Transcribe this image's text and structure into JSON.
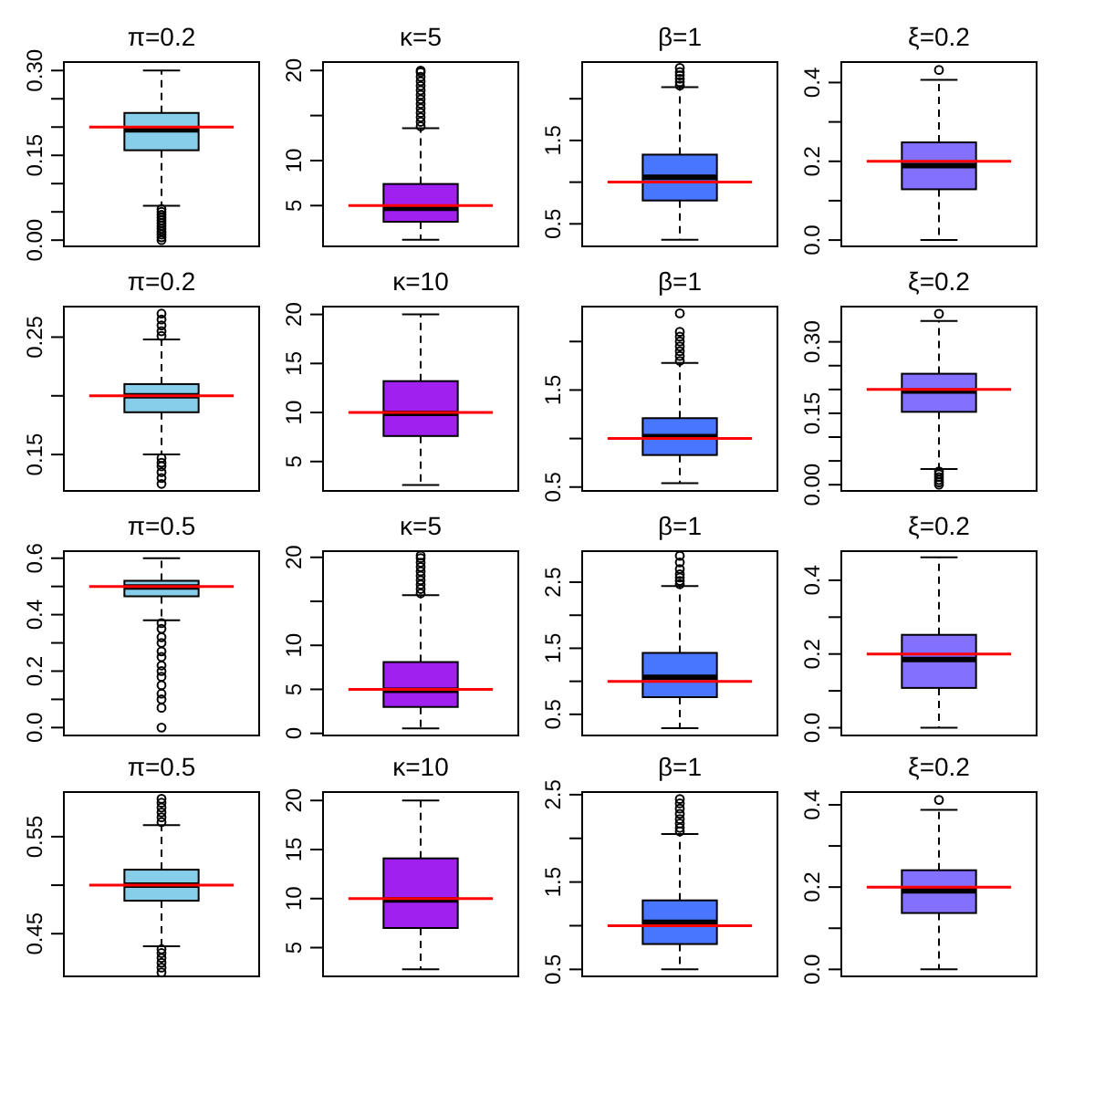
{
  "chart_data": [
    {
      "type": "box",
      "title": "π=0.2",
      "categories": [
        null
      ],
      "tick_labels": "y",
      "ylim": [
        -0.011,
        0.315
      ],
      "yticks": [
        {
          "value": 0,
          "label": "0.00"
        },
        {
          "value": 0.05,
          "label": null
        },
        {
          "value": 0.1,
          "label": null
        },
        0.15,
        {
          "value": 0.2,
          "label": null
        },
        {
          "value": 0.25,
          "label": null
        },
        {
          "value": 0.3,
          "label": "0.30"
        }
      ],
      "series": [
        {
          "color": "#87ceeb",
          "boxes": [
            {
              "low": 0.061,
              "q1": 0.159,
              "median": 0.195,
              "q3": 0.225,
              "high": 0.3,
              "outliers": [
                0.055,
                0.05,
                0.045,
                0.04,
                0.035,
                0.03,
                0.025,
                0.02,
                0.015,
                0.01,
                0.005,
                0.0
              ]
            }
          ]
        }
      ],
      "ref_lines": [
        {
          "axis": "y",
          "value": 0.2,
          "color": "#ff0000"
        }
      ]
    },
    {
      "type": "box",
      "title": "κ=5",
      "categories": [
        null
      ],
      "tick_labels": "y",
      "ylim": [
        0.47,
        20.94
      ],
      "yticks": [
        5,
        10,
        {
          "value": 15,
          "label": null
        },
        20
      ],
      "series": [
        {
          "color": "#a020f0",
          "boxes": [
            {
              "low": 1.2,
              "q1": 3.2,
              "median": 4.7,
              "q3": 7.4,
              "high": 13.6,
              "outliers": [
                13.8,
                14.3,
                14.8,
                15.3,
                15.8,
                16.3,
                16.8,
                17.3,
                17.8,
                18.3,
                18.8,
                19.3,
                19.8,
                20
              ]
            }
          ]
        }
      ],
      "ref_lines": [
        {
          "axis": "y",
          "value": 5,
          "color": "#ff0000"
        }
      ]
    },
    {
      "type": "box",
      "title": "β=1",
      "categories": [
        null
      ],
      "tick_labels": "y",
      "ylim": [
        0.23,
        2.44
      ],
      "yticks": [
        0.5,
        {
          "value": 1,
          "label": null
        },
        1.5,
        {
          "value": 2,
          "label": null
        }
      ],
      "series": [
        {
          "color": "#4876ff",
          "boxes": [
            {
              "low": 0.31,
              "q1": 0.78,
              "median": 1.06,
              "q3": 1.33,
              "high": 2.14,
              "outliers": [
                2.16,
                2.2,
                2.24,
                2.28,
                2.32,
                2.37
              ]
            }
          ]
        }
      ],
      "ref_lines": [
        {
          "axis": "y",
          "value": 1,
          "color": "#ff0000"
        }
      ]
    },
    {
      "type": "box",
      "title": "ξ=0.2",
      "categories": [
        null
      ],
      "tick_labels": "y",
      "ylim": [
        -0.016,
        0.452
      ],
      "yticks": [
        {
          "value": 0,
          "label": "0.0"
        },
        {
          "value": 0.1,
          "label": null
        },
        0.2,
        {
          "value": 0.3,
          "label": null
        },
        0.4
      ],
      "series": [
        {
          "color": "#8470ff",
          "boxes": [
            {
              "low": 0,
              "q1": 0.129,
              "median": 0.189,
              "q3": 0.248,
              "high": 0.407,
              "outliers": [
                0.432
              ]
            }
          ]
        }
      ],
      "ref_lines": [
        {
          "axis": "y",
          "value": 0.2,
          "color": "#ff0000"
        }
      ]
    },
    {
      "type": "box",
      "title": "π=0.2",
      "categories": [
        null
      ],
      "tick_labels": "y",
      "ylim": [
        0.119,
        0.276
      ],
      "yticks": [
        0.15,
        {
          "value": 0.2,
          "label": null
        },
        0.25
      ],
      "series": [
        {
          "color": "#87ceeb",
          "boxes": [
            {
              "low": 0.15,
              "q1": 0.186,
              "median": 0.2,
              "q3": 0.21,
              "high": 0.248,
              "outliers": [
                0.251,
                0.255,
                0.26,
                0.265,
                0.27,
                0.147,
                0.143,
                0.14,
                0.135,
                0.13,
                0.125
              ]
            }
          ]
        }
      ],
      "ref_lines": [
        {
          "axis": "y",
          "value": 0.2,
          "color": "#ff0000"
        }
      ]
    },
    {
      "type": "box",
      "title": "κ=10",
      "categories": [
        null
      ],
      "tick_labels": "y",
      "ylim": [
        2.0,
        20.8
      ],
      "yticks": [
        5,
        10,
        15,
        20
      ],
      "series": [
        {
          "color": "#a020f0",
          "boxes": [
            {
              "low": 2.6,
              "q1": 7.6,
              "median": 9.9,
              "q3": 13.2,
              "high": 20
            }
          ]
        }
      ],
      "ref_lines": [
        {
          "axis": "y",
          "value": 10,
          "color": "#ff0000"
        }
      ]
    },
    {
      "type": "box",
      "title": "β=1",
      "categories": [
        null
      ],
      "tick_labels": "y",
      "ylim": [
        0.46,
        2.36
      ],
      "yticks": [
        0.5,
        {
          "value": 1,
          "label": null
        },
        1.5,
        {
          "value": 2,
          "label": null
        }
      ],
      "series": [
        {
          "color": "#4876ff",
          "boxes": [
            {
              "low": 0.54,
              "q1": 0.83,
              "median": 1.02,
              "q3": 1.21,
              "high": 1.78,
              "outliers": [
                1.8,
                1.85,
                1.9,
                1.95,
                2.0,
                2.05,
                2.1,
                2.29
              ]
            }
          ]
        }
      ],
      "ref_lines": [
        {
          "axis": "y",
          "value": 1,
          "color": "#ff0000"
        }
      ]
    },
    {
      "type": "box",
      "title": "ξ=0.2",
      "categories": [
        null
      ],
      "tick_labels": "y",
      "ylim": [
        -0.013,
        0.374
      ],
      "yticks": [
        {
          "value": 0,
          "label": "0.00"
        },
        {
          "value": 0.05,
          "label": null
        },
        {
          "value": 0.1,
          "label": null
        },
        0.15,
        {
          "value": 0.2,
          "label": null
        },
        {
          "value": 0.25,
          "label": null
        },
        {
          "value": 0.3,
          "label": "0.30"
        }
      ],
      "series": [
        {
          "color": "#8470ff",
          "boxes": [
            {
              "low": 0.033,
              "q1": 0.153,
              "median": 0.197,
              "q3": 0.233,
              "high": 0.344,
              "outliers": [
                0.359,
                0.028,
                0.022,
                0.016,
                0.01,
                0.005,
                0.0
              ]
            }
          ]
        }
      ],
      "ref_lines": [
        {
          "axis": "y",
          "value": 0.2,
          "color": "#ff0000"
        }
      ]
    },
    {
      "type": "box",
      "title": "π=0.5",
      "categories": [
        null
      ],
      "tick_labels": "y",
      "ylim": [
        -0.028,
        0.625
      ],
      "yticks": [
        {
          "value": 0,
          "label": "0.0"
        },
        {
          "value": 0.1,
          "label": null
        },
        0.2,
        {
          "value": 0.3,
          "label": null
        },
        0.4,
        {
          "value": 0.5,
          "label": null
        },
        0.6
      ],
      "series": [
        {
          "color": "#87ceeb",
          "boxes": [
            {
              "low": 0.38,
              "q1": 0.465,
              "median": 0.498,
              "q3": 0.52,
              "high": 0.6,
              "outliers": [
                0.37,
                0.35,
                0.32,
                0.3,
                0.27,
                0.25,
                0.22,
                0.2,
                0.18,
                0.15,
                0.12,
                0.1,
                0.07,
                0.0
              ]
            }
          ]
        }
      ],
      "ref_lines": [
        {
          "axis": "y",
          "value": 0.5,
          "color": "#ff0000"
        }
      ]
    },
    {
      "type": "box",
      "title": "κ=5",
      "categories": [
        null
      ],
      "tick_labels": "y",
      "ylim": [
        -0.24,
        20.7
      ],
      "yticks": [
        0,
        5,
        10,
        {
          "value": 15,
          "label": null
        },
        20
      ],
      "series": [
        {
          "color": "#a020f0",
          "boxes": [
            {
              "low": 0.56,
              "q1": 3.0,
              "median": 4.9,
              "q3": 8.1,
              "high": 15.7,
              "outliers": [
                15.9,
                16.4,
                16.9,
                17.4,
                17.9,
                18.4,
                18.9,
                19.4,
                19.9,
                20.2
              ]
            }
          ]
        }
      ],
      "ref_lines": [
        {
          "axis": "y",
          "value": 5,
          "color": "#ff0000"
        }
      ]
    },
    {
      "type": "box",
      "title": "β=1",
      "categories": [
        null
      ],
      "tick_labels": "y",
      "ylim": [
        0.18,
        2.97
      ],
      "yticks": [
        0.5,
        {
          "value": 1,
          "label": null
        },
        1.5,
        {
          "value": 2,
          "label": null
        },
        2.5
      ],
      "series": [
        {
          "color": "#4876ff",
          "boxes": [
            {
              "low": 0.29,
              "q1": 0.76,
              "median": 1.06,
              "q3": 1.43,
              "high": 2.44,
              "outliers": [
                2.47,
                2.52,
                2.57,
                2.62,
                2.7,
                2.8,
                2.9
              ]
            }
          ]
        }
      ],
      "ref_lines": [
        {
          "axis": "y",
          "value": 1,
          "color": "#ff0000"
        }
      ]
    },
    {
      "type": "box",
      "title": "ξ=0.2",
      "categories": [
        null
      ],
      "tick_labels": "y",
      "ylim": [
        -0.021,
        0.479
      ],
      "yticks": [
        {
          "value": 0,
          "label": "0.0"
        },
        {
          "value": 0.1,
          "label": null
        },
        0.2,
        {
          "value": 0.3,
          "label": null
        },
        0.4
      ],
      "series": [
        {
          "color": "#8470ff",
          "boxes": [
            {
              "low": 0,
              "q1": 0.108,
              "median": 0.185,
              "q3": 0.252,
              "high": 0.462
            }
          ]
        }
      ],
      "ref_lines": [
        {
          "axis": "y",
          "value": 0.2,
          "color": "#ff0000"
        }
      ]
    },
    {
      "type": "box",
      "title": "π=0.5",
      "categories": [
        null
      ],
      "tick_labels": "y",
      "ylim": [
        0.406,
        0.596
      ],
      "yticks": [
        0.45,
        {
          "value": 0.5,
          "label": null
        },
        0.55
      ],
      "series": [
        {
          "color": "#87ceeb",
          "boxes": [
            {
              "low": 0.437,
              "q1": 0.484,
              "median": 0.5,
              "q3": 0.516,
              "high": 0.562,
              "outliers": [
                0.565,
                0.57,
                0.575,
                0.58,
                0.585,
                0.589,
                0.434,
                0.43,
                0.425,
                0.42,
                0.415,
                0.41
              ]
            }
          ]
        }
      ],
      "ref_lines": [
        {
          "axis": "y",
          "value": 0.5,
          "color": "#ff0000"
        }
      ]
    },
    {
      "type": "box",
      "title": "κ=10",
      "categories": [
        null
      ],
      "tick_labels": "y",
      "ylim": [
        2.07,
        20.86
      ],
      "yticks": [
        5,
        10,
        15,
        20
      ],
      "series": [
        {
          "color": "#a020f0",
          "boxes": [
            {
              "low": 2.8,
              "q1": 7.0,
              "median": 9.86,
              "q3": 14.1,
              "high": 20
            }
          ]
        }
      ],
      "ref_lines": [
        {
          "axis": "y",
          "value": 10,
          "color": "#ff0000"
        }
      ]
    },
    {
      "type": "box",
      "title": "β=1",
      "categories": [
        null
      ],
      "tick_labels": "y",
      "ylim": [
        0.42,
        2.53
      ],
      "yticks": [
        0.5,
        {
          "value": 1,
          "label": null
        },
        1.5,
        {
          "value": 2,
          "label": null
        },
        2.5
      ],
      "series": [
        {
          "color": "#4876ff",
          "boxes": [
            {
              "low": 0.5,
              "q1": 0.79,
              "median": 1.04,
              "q3": 1.29,
              "high": 2.05,
              "outliers": [
                2.08,
                2.12,
                2.17,
                2.22,
                2.28,
                2.34,
                2.4,
                2.45
              ]
            }
          ]
        }
      ],
      "ref_lines": [
        {
          "axis": "y",
          "value": 1,
          "color": "#ff0000"
        }
      ]
    },
    {
      "type": "box",
      "title": "ξ=0.2",
      "categories": [
        null
      ],
      "tick_labels": "y",
      "ylim": [
        -0.017,
        0.431
      ],
      "yticks": [
        {
          "value": 0,
          "label": "0.0"
        },
        {
          "value": 0.1,
          "label": null
        },
        0.2,
        {
          "value": 0.3,
          "label": null
        },
        0.4
      ],
      "series": [
        {
          "color": "#8470ff",
          "boxes": [
            {
              "low": 0,
              "q1": 0.137,
              "median": 0.191,
              "q3": 0.241,
              "high": 0.388,
              "outliers": [
                0.412
              ]
            }
          ]
        }
      ],
      "ref_lines": [
        {
          "axis": "y",
          "value": 0.2,
          "color": "#ff0000"
        }
      ]
    }
  ]
}
